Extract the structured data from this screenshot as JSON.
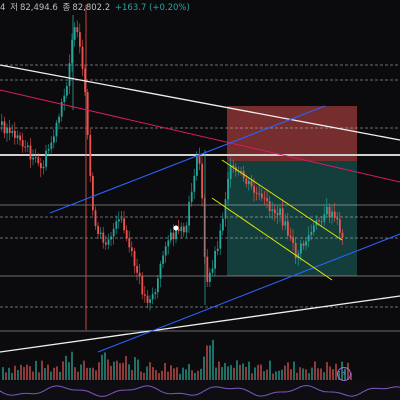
{
  "ohlc": {
    "open_tail": "4",
    "low_label": "저",
    "low_value": "82,494.6",
    "close_label": "종",
    "close_value": "82,802.2",
    "change": "+163.7 (+0.20%)"
  },
  "colors": {
    "background": "#0b0b0d",
    "up": "#26a69a",
    "down": "#ef5350",
    "blue_line": "#2962ff",
    "pink_line": "#d81b60",
    "yellow_line": "#e6e600",
    "white_line": "#f0f0f0",
    "short_loss_zone": "#e0505080",
    "short_profit_zone": "#26a69a55",
    "oscillator": "#7e57c2"
  },
  "icons": {
    "alert": "lightning-bolt-icon"
  }
}
